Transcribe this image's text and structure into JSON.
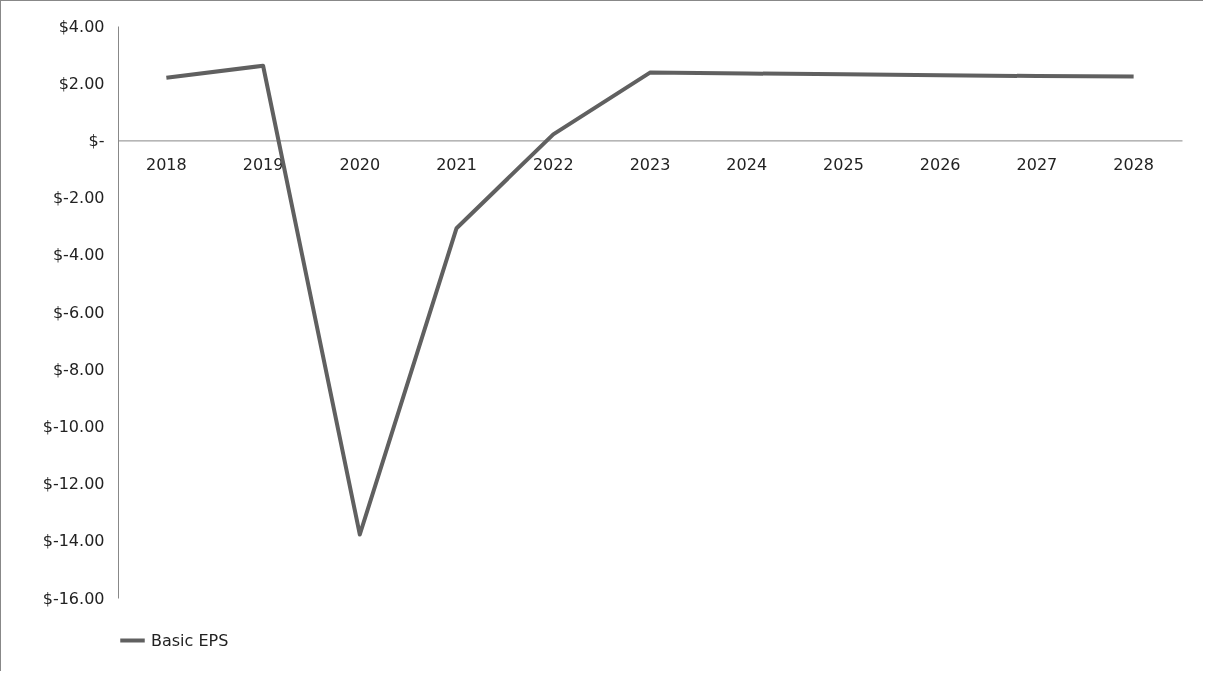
{
  "chart_data": {
    "type": "line",
    "categories": [
      "2018",
      "2019",
      "2020",
      "2021",
      "2022",
      "2023",
      "2024",
      "2025",
      "2026",
      "2027",
      "2028"
    ],
    "series": [
      {
        "name": "Basic EPS",
        "color": "#606060",
        "values": [
          2.19,
          2.61,
          -13.78,
          -3.07,
          0.21,
          2.37,
          2.34,
          2.31,
          2.28,
          2.25,
          2.23
        ]
      }
    ],
    "ylim": [
      -16,
      4
    ],
    "yticks": [
      {
        "value": 4,
        "label": "$4.00"
      },
      {
        "value": 2,
        "label": "$2.00"
      },
      {
        "value": 0,
        "label": "$-"
      },
      {
        "value": -2,
        "label": "$-2.00"
      },
      {
        "value": -4,
        "label": "$-4.00"
      },
      {
        "value": -6,
        "label": "$-6.00"
      },
      {
        "value": -8,
        "label": "$-8.00"
      },
      {
        "value": -10,
        "label": "$-10.00"
      },
      {
        "value": -12,
        "label": "$-12.00"
      },
      {
        "value": -14,
        "label": "$-14.00"
      },
      {
        "value": -16,
        "label": "$-16.00"
      }
    ],
    "grid": false,
    "legend": "bottom",
    "marker": "none",
    "line_style": "solid"
  }
}
